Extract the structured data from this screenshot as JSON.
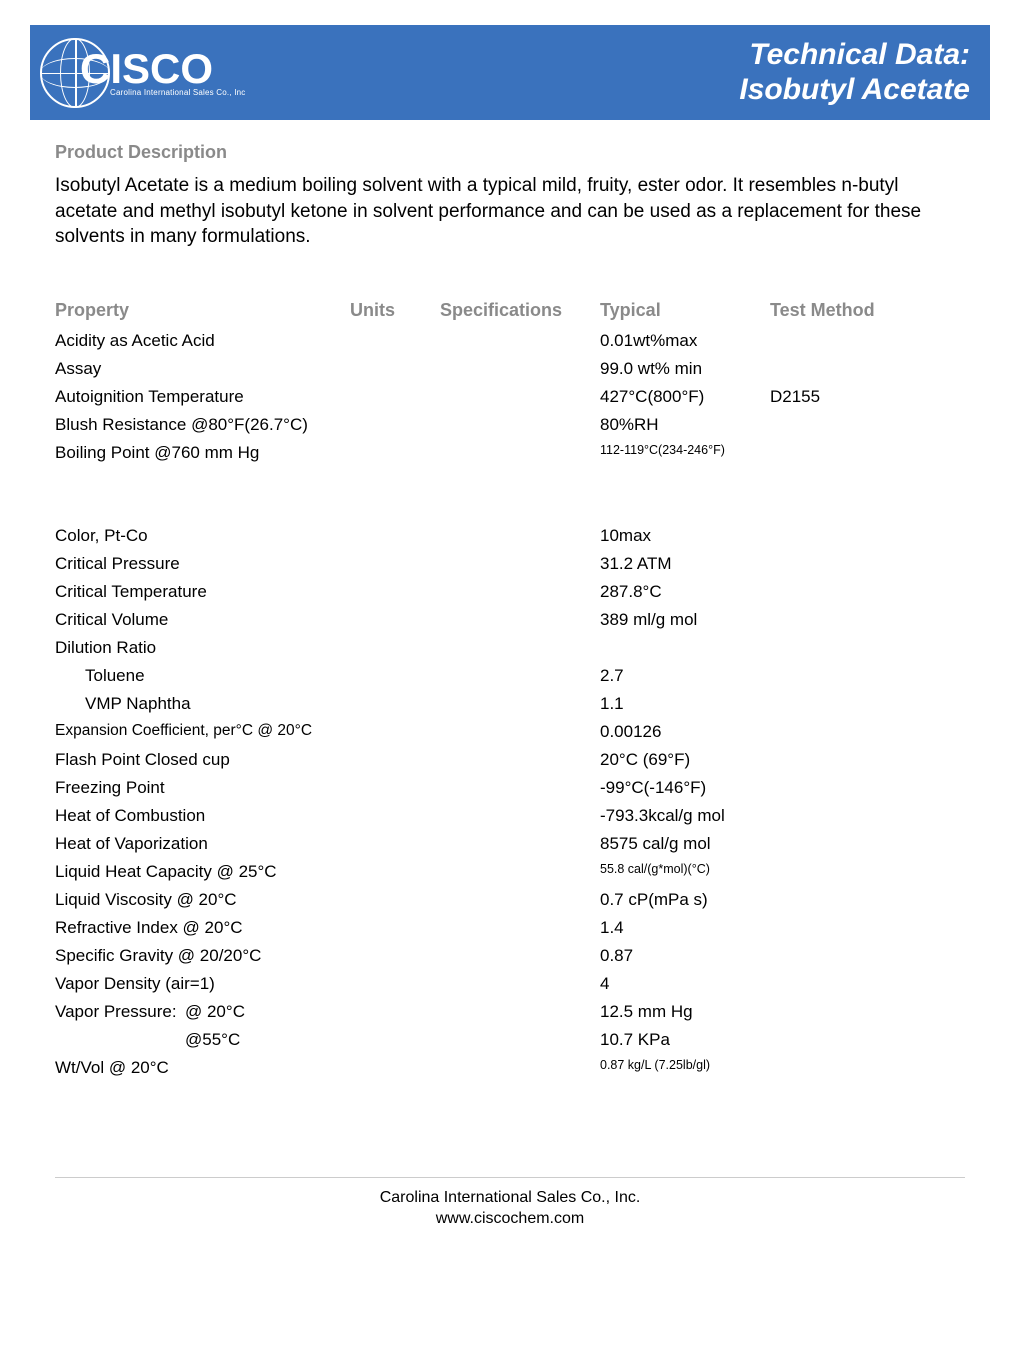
{
  "header": {
    "brand": "CISCO",
    "brand_sub": "Carolina International Sales Co., Inc",
    "title_line1": "Technical Data:",
    "title_line2": "Isobutyl Acetate",
    "banner_color": "#3a72bd"
  },
  "section": {
    "desc_heading": "Product Description",
    "description": "Isobutyl Acetate is a medium boiling solvent with a typical mild, fruity, ester odor. It resembles n-butyl acetate and methyl isobutyl ketone in solvent performance and can be used as a replacement for these solvents in many formulations."
  },
  "table": {
    "headers": {
      "property": "Property",
      "units": "Units",
      "specs": "Specifications",
      "typical": "Typical",
      "test": "Test Method"
    },
    "group1": [
      {
        "property": "Acidity as Acetic Acid",
        "typical": "0.01wt%max"
      },
      {
        "property": "Assay",
        "typical": "99.0 wt% min"
      },
      {
        "property": "Autoignition Temperature",
        "typical": "427°C(800°F)",
        "test": "D2155"
      },
      {
        "property": "Blush Resistance @80°F(26.7°C)",
        "typical": "80%RH"
      },
      {
        "property": "Boiling Point @760 mm Hg",
        "typical": "112-119°C(234-246°F)",
        "typ_small": true
      }
    ],
    "group2": [
      {
        "property": "Color, Pt-Co",
        "typical": "10max"
      },
      {
        "property": "Critical Pressure",
        "typical": "31.2 ATM"
      },
      {
        "property": "Critical Temperature",
        "typical": "287.8°C"
      },
      {
        "property": "Critical Volume",
        "typical": "389 ml/g mol"
      },
      {
        "property": "Dilution Ratio",
        "typical": ""
      },
      {
        "property": "Toluene",
        "typical": "2.7",
        "indent": 1
      },
      {
        "property": "VMP Naphtha",
        "typical": "1.1",
        "indent": 1
      },
      {
        "property": "Expansion Coefficient, per°C @ 20°C",
        "typical": "0.00126",
        "prop_small": true
      },
      {
        "property": "Flash Point Closed cup",
        "typical": "20°C (69°F)"
      },
      {
        "property": "Freezing Point",
        "typical": "-99°C(-146°F)"
      },
      {
        "property": "Heat of Combustion",
        "typical": "-793.3kcal/g mol"
      },
      {
        "property": "Heat of Vaporization",
        "typical": "8575 cal/g mol"
      },
      {
        "property": "Liquid Heat Capacity @ 25°C",
        "typical": "55.8 cal/(g*mol)(°C)",
        "typ_small": true
      },
      {
        "property": "Liquid Viscosity @ 20°C",
        "typical": "0.7 cP(mPa s)"
      },
      {
        "property": "Refractive Index @ 20°C",
        "typical": "1.4"
      },
      {
        "property": "Specific Gravity @ 20/20°C",
        "typical": "0.87"
      },
      {
        "property": "Vapor Density (air=1)",
        "typical": "4"
      },
      {
        "property_label": "Vapor Pressure:",
        "property_cond": "@ 20°C",
        "typical": "12.5 mm Hg",
        "split": true
      },
      {
        "property": "@55°C",
        "typical": "10.7 KPa",
        "indent": 2
      },
      {
        "property": "Wt/Vol @ 20°C",
        "typical": "0.87 kg/L (7.25lb/gl)",
        "typ_small": true
      }
    ]
  },
  "footer": {
    "line1": "Carolina International Sales Co., Inc.",
    "line2": "www.ciscochem.com"
  }
}
